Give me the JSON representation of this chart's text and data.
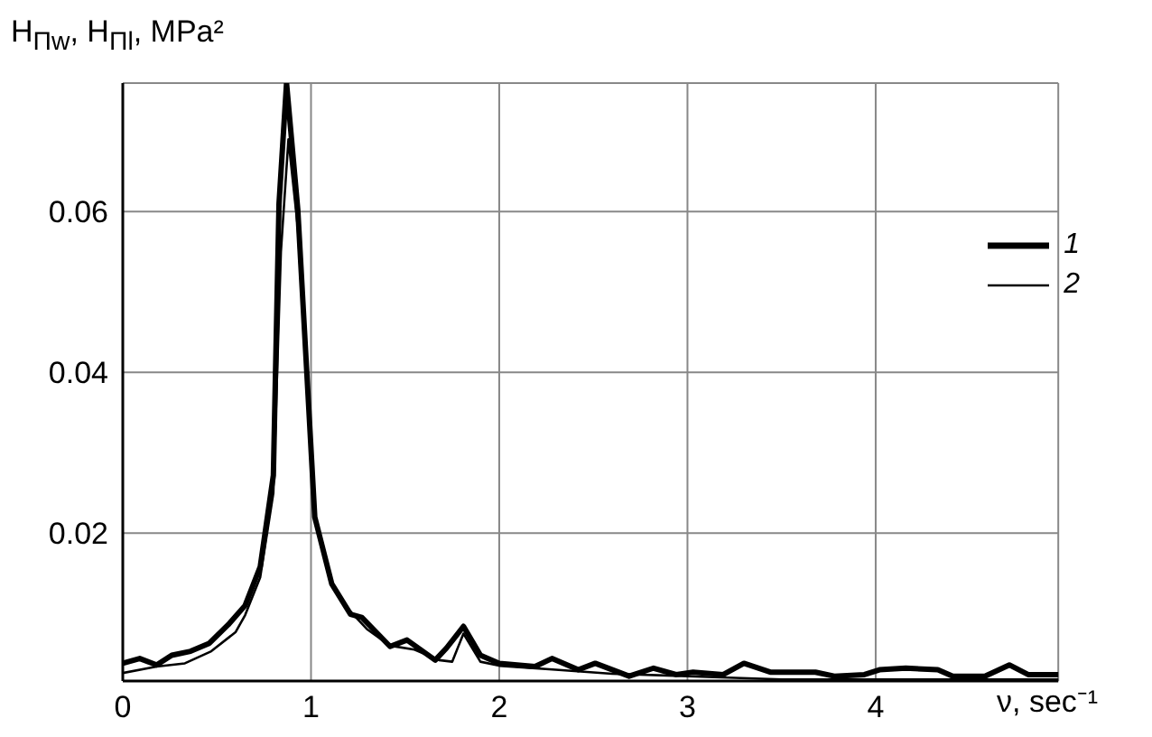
{
  "chart_data": {
    "type": "line",
    "ylabel": "H$_{Πw}$, H$_{Πl}$, MPa²",
    "xlabel": "ν, sec⁻¹",
    "xlim": [
      0,
      4.97
    ],
    "ylim": [
      0.0016,
      0.076
    ],
    "xticks": [
      0,
      1,
      2,
      3,
      4
    ],
    "yticks": [
      0.02,
      0.04,
      0.06
    ],
    "grid": true,
    "legend": "top right",
    "marker": "none",
    "line_style": "solid",
    "series": [
      {
        "name": "1",
        "color": "#000000",
        "x": [
          0,
          0.09,
          0.18,
          0.26,
          0.36,
          0.46,
          0.56,
          0.65,
          0.73,
          0.8,
          0.83,
          0.87,
          0.93,
          1.02,
          1.11,
          1.21,
          1.27,
          1.42,
          1.51,
          1.66,
          1.72,
          1.81,
          1.9,
          2.0,
          2.19,
          2.28,
          2.42,
          2.51,
          2.69,
          2.82,
          2.94,
          3.03,
          3.19,
          3.3,
          3.44,
          3.68,
          3.78,
          3.94,
          4.02,
          4.16,
          4.33,
          4.41,
          4.58,
          4.71,
          4.81,
          4.97
        ],
        "values": [
          0.0038,
          0.0044,
          0.0036,
          0.0048,
          0.0053,
          0.0063,
          0.0086,
          0.011,
          0.0158,
          0.0272,
          0.061,
          0.076,
          0.0602,
          0.022,
          0.0137,
          0.0099,
          0.0095,
          0.0059,
          0.0067,
          0.0042,
          0.0057,
          0.0084,
          0.0048,
          0.0038,
          0.0034,
          0.0044,
          0.003,
          0.0038,
          0.0022,
          0.0032,
          0.0024,
          0.0027,
          0.0024,
          0.0038,
          0.0027,
          0.0027,
          0.0022,
          0.0024,
          0.003,
          0.0032,
          0.003,
          0.0022,
          0.0022,
          0.0036,
          0.0024,
          0.0024
        ]
      },
      {
        "name": "2",
        "color": "#000000",
        "x": [
          0,
          0.18,
          0.33,
          0.47,
          0.6,
          0.65,
          0.73,
          0.8,
          0.84,
          0.88,
          0.93,
          1.02,
          1.11,
          1.2,
          1.3,
          1.42,
          1.55,
          1.68,
          1.75,
          1.81,
          1.9,
          2.0,
          2.3,
          2.6,
          3.0,
          3.5,
          4.0,
          4.5,
          4.97
        ],
        "values": [
          0.0026,
          0.0034,
          0.0038,
          0.0053,
          0.0077,
          0.0098,
          0.0145,
          0.025,
          0.055,
          0.069,
          0.058,
          0.022,
          0.0135,
          0.0105,
          0.008,
          0.006,
          0.0055,
          0.0042,
          0.004,
          0.0075,
          0.004,
          0.0035,
          0.003,
          0.0025,
          0.0022,
          0.0018,
          0.0018,
          0.0018,
          0.0018
        ]
      }
    ]
  }
}
